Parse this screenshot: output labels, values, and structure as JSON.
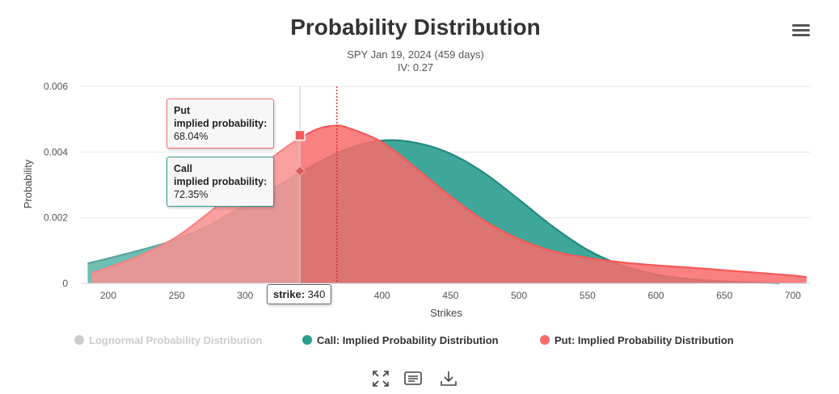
{
  "chart_data": {
    "type": "area",
    "title": "Probability Distribution",
    "subtitle": [
      "SPY Jan 19, 2024 (459 days)",
      "IV: 0.27"
    ],
    "xlabel": "Strikes",
    "ylabel": "Probability",
    "xlim": [
      180,
      713
    ],
    "ylim": [
      0,
      0.006
    ],
    "x_ticks": [
      "200",
      "250",
      "300",
      "350",
      "400",
      "450",
      "500",
      "550",
      "600",
      "650",
      "700"
    ],
    "y_ticks": [
      "0",
      "0.002",
      "0.004",
      "0.006"
    ],
    "grid": true,
    "legend_position": "bottom",
    "series": [
      {
        "name": "Lognormal Probability Distribution",
        "color": "#cccccc",
        "hidden": true,
        "x": [],
        "y": []
      },
      {
        "name": "Call: Implied Probability Distribution",
        "color": "#2a9d8f",
        "x": [
          185,
          200,
          225,
          250,
          275,
          300,
          325,
          350,
          375,
          400,
          425,
          450,
          475,
          500,
          525,
          550,
          575,
          600,
          625,
          650,
          675,
          690
        ],
        "y": [
          0.00061,
          0.00076,
          0.00103,
          0.00134,
          0.0018,
          0.0024,
          0.003,
          0.0036,
          0.0041,
          0.00435,
          0.00428,
          0.00395,
          0.00335,
          0.00255,
          0.00172,
          0.00102,
          0.00055,
          0.00027,
          0.00013,
          6e-05,
          2e-05,
          0.0
        ]
      },
      {
        "name": "Put: Implied Probability Distribution",
        "color": "#f86b6b",
        "x": [
          188,
          200,
          225,
          250,
          275,
          300,
          325,
          350,
          365,
          375,
          400,
          425,
          450,
          475,
          500,
          525,
          550,
          575,
          600,
          625,
          650,
          675,
          700,
          710
        ],
        "y": [
          0.00032,
          0.00048,
          0.00088,
          0.00142,
          0.0022,
          0.0031,
          0.004,
          0.00465,
          0.0048,
          0.00474,
          0.0043,
          0.0035,
          0.00265,
          0.0019,
          0.00135,
          0.00098,
          0.00078,
          0.00064,
          0.00055,
          0.00048,
          0.0004,
          0.00032,
          0.00024,
          0.00019
        ]
      }
    ],
    "marker_x": 340,
    "current_price_x": 367,
    "tooltips": {
      "put": {
        "line1": "Put",
        "line2": "implied probability:",
        "value": "68.04%",
        "marker_y": 0.00451
      },
      "call": {
        "line1": "Call",
        "line2": "implied probability:",
        "value": "72.35%",
        "marker_y": 0.00342
      }
    },
    "strike_label": "strike:",
    "strike_value": "340"
  },
  "colors": {
    "call": "#2a9d8f",
    "put": "#f86b6b",
    "overlap": "#d75d5f",
    "lognormal": "#cccccc"
  },
  "icons": {
    "menu": "hamburger-icon",
    "fullscreen": "expand-icon",
    "data_table": "table-icon",
    "download": "download-icon"
  }
}
